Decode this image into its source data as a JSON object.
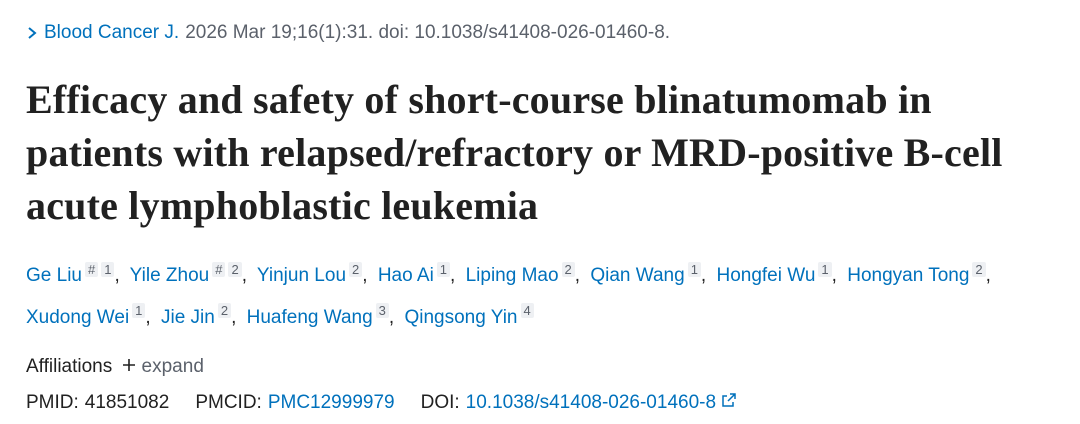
{
  "citation": {
    "journal": "Blood Cancer J.",
    "details": "2026 Mar 19;16(1):31. doi: 10.1038/s41408-026-01460-8."
  },
  "title": "Efficacy and safety of short-course blinatumomab in patients with relapsed/refractory or MRD-positive B-cell acute lymphoblastic leukemia",
  "authors": [
    {
      "name": "Ge Liu",
      "mark": "#",
      "affiliation": "1"
    },
    {
      "name": "Yile Zhou",
      "mark": "#",
      "affiliation": "2"
    },
    {
      "name": "Yinjun Lou",
      "affiliation": "2"
    },
    {
      "name": "Hao Ai",
      "affiliation": "1"
    },
    {
      "name": "Liping Mao",
      "affiliation": "2"
    },
    {
      "name": "Qian Wang",
      "affiliation": "1"
    },
    {
      "name": "Hongfei Wu",
      "affiliation": "1"
    },
    {
      "name": "Hongyan Tong",
      "affiliation": "2"
    },
    {
      "name": "Xudong Wei",
      "affiliation": "1"
    },
    {
      "name": "Jie Jin",
      "affiliation": "2"
    },
    {
      "name": "Huafeng Wang",
      "affiliation": "3"
    },
    {
      "name": "Qingsong Yin",
      "affiliation": "4"
    }
  ],
  "affiliations": {
    "label": "Affiliations",
    "toggle": "expand"
  },
  "identifiers": {
    "pmid_label": "PMID:",
    "pmid": "41851082",
    "pmcid_label": "PMCID:",
    "pmcid": "PMC12999979",
    "doi_label": "DOI:",
    "doi": "10.1038/s41408-026-01460-8"
  }
}
